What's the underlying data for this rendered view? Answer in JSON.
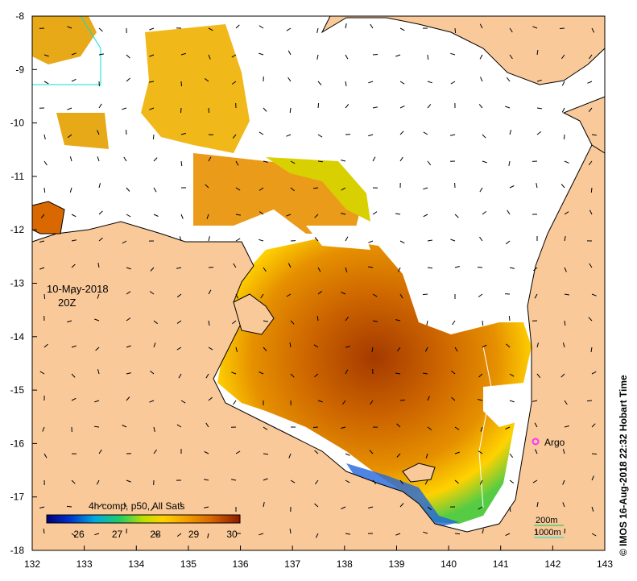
{
  "map": {
    "date_label": "10-May-2018",
    "time_label": "20Z",
    "credit": "© IMOS 16-Aug-2018 22:32 Hobart Time",
    "argo_label": "Argo",
    "colorbar_title": "4h comp, p50, All Sats",
    "colorbar_ticks": [
      "26",
      "27",
      "28",
      "29",
      "30"
    ],
    "contour_labels": [
      "200m",
      "1000m"
    ],
    "x_ticks": [
      "132",
      "133",
      "134",
      "135",
      "136",
      "137",
      "138",
      "139",
      "140",
      "141",
      "142",
      "143"
    ],
    "y_ticks": [
      "-8",
      "-9",
      "-10",
      "-11",
      "-12",
      "-13",
      "-14",
      "-15",
      "-16",
      "-17",
      "-18"
    ],
    "colors": {
      "land": "#f9c99a",
      "argo": "#ff33ff",
      "contour_200": "#00cc55",
      "contour_1000": "#00e0e0"
    }
  }
}
